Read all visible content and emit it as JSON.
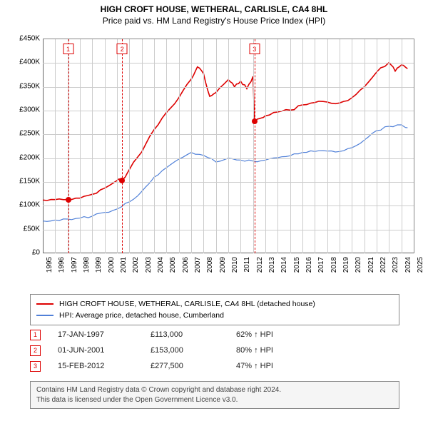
{
  "title": {
    "line1": "HIGH CROFT HOUSE, WETHERAL, CARLISLE, CA4 8HL",
    "line2": "Price paid vs. HM Land Registry's House Price Index (HPI)"
  },
  "chart": {
    "type": "line",
    "background_color": "#ffffff",
    "grid_color": "#cccccc",
    "axis_color": "#666666",
    "x": {
      "min": 1995,
      "max": 2025,
      "tick_step": 1,
      "ticks": [
        1995,
        1996,
        1997,
        1998,
        1999,
        2000,
        2001,
        2002,
        2003,
        2004,
        2005,
        2006,
        2007,
        2008,
        2009,
        2010,
        2011,
        2012,
        2013,
        2014,
        2015,
        2016,
        2017,
        2018,
        2019,
        2020,
        2021,
        2022,
        2023,
        2024,
        2025
      ]
    },
    "y": {
      "min": 0,
      "max": 450000,
      "tick_step": 50000,
      "ticks_labels": [
        "£0",
        "£50K",
        "£100K",
        "£150K",
        "£200K",
        "£250K",
        "£300K",
        "£350K",
        "£400K",
        "£450K"
      ]
    },
    "series": [
      {
        "id": "property",
        "label": "HIGH CROFT HOUSE, WETHERAL, CARLISLE, CA4 8HL (detached house)",
        "color": "#dd0000",
        "width": 1.6,
        "wiggle": 4,
        "points": [
          [
            1995,
            112000
          ],
          [
            1996,
            113000
          ],
          [
            1997,
            113000
          ],
          [
            1998,
            116000
          ],
          [
            1999,
            124000
          ],
          [
            2000,
            137000
          ],
          [
            2001,
            153000
          ],
          [
            2001.5,
            156000
          ],
          [
            2002,
            176000
          ],
          [
            2003,
            213000
          ],
          [
            2004,
            260000
          ],
          [
            2005,
            296000
          ],
          [
            2006,
            327000
          ],
          [
            2007,
            366000
          ],
          [
            2007.5,
            392000
          ],
          [
            2008,
            378000
          ],
          [
            2008.5,
            330000
          ],
          [
            2009,
            338000
          ],
          [
            2010,
            365000
          ],
          [
            2010.5,
            350000
          ],
          [
            2011,
            362000
          ],
          [
            2011.5,
            346000
          ],
          [
            2012,
            372000
          ],
          [
            2012.12,
            277500
          ],
          [
            2012.5,
            283000
          ],
          [
            2013,
            289000
          ],
          [
            2014,
            297000
          ],
          [
            2015,
            301000
          ],
          [
            2016,
            312000
          ],
          [
            2017,
            317000
          ],
          [
            2018,
            318000
          ],
          [
            2019,
            316000
          ],
          [
            2020,
            327000
          ],
          [
            2021,
            350000
          ],
          [
            2022,
            381000
          ],
          [
            2023,
            401000
          ],
          [
            2023.5,
            383000
          ],
          [
            2024,
            396000
          ],
          [
            2024.5,
            388000
          ]
        ]
      },
      {
        "id": "hpi",
        "label": "HPI: Average price, detached house, Cumberland",
        "color": "#5080d8",
        "width": 1.2,
        "wiggle": 3,
        "points": [
          [
            1995,
            68000
          ],
          [
            1996,
            70000
          ],
          [
            1997,
            72000
          ],
          [
            1998,
            74000
          ],
          [
            1999,
            78000
          ],
          [
            2000,
            86000
          ],
          [
            2001,
            93000
          ],
          [
            2002,
            108000
          ],
          [
            2003,
            130000
          ],
          [
            2004,
            160000
          ],
          [
            2005,
            180000
          ],
          [
            2006,
            198000
          ],
          [
            2007,
            212000
          ],
          [
            2008,
            206000
          ],
          [
            2009,
            192000
          ],
          [
            2010,
            200000
          ],
          [
            2011,
            196000
          ],
          [
            2012,
            194000
          ],
          [
            2013,
            196000
          ],
          [
            2014,
            201000
          ],
          [
            2015,
            205000
          ],
          [
            2016,
            212000
          ],
          [
            2017,
            214000
          ],
          [
            2018,
            215000
          ],
          [
            2019,
            214000
          ],
          [
            2020,
            222000
          ],
          [
            2021,
            238000
          ],
          [
            2022,
            258000
          ],
          [
            2023,
            267000
          ],
          [
            2024,
            270000
          ],
          [
            2024.5,
            264000
          ]
        ]
      }
    ],
    "event_lines": [
      {
        "x": 1997.05,
        "label": "1"
      },
      {
        "x": 2001.42,
        "label": "2"
      },
      {
        "x": 2012.12,
        "label": "3"
      }
    ],
    "event_points": [
      {
        "x": 1997.05,
        "y": 113000
      },
      {
        "x": 2001.42,
        "y": 153000
      },
      {
        "x": 2012.12,
        "y": 277500
      }
    ]
  },
  "legend": {
    "items": [
      {
        "color": "#dd0000",
        "label": "HIGH CROFT HOUSE, WETHERAL, CARLISLE, CA4 8HL (detached house)"
      },
      {
        "color": "#5080d8",
        "label": "HPI: Average price, detached house, Cumberland"
      }
    ]
  },
  "transactions": [
    {
      "num": "1",
      "date": "17-JAN-1997",
      "price": "£113,000",
      "delta": "62% ↑ HPI"
    },
    {
      "num": "2",
      "date": "01-JUN-2001",
      "price": "£153,000",
      "delta": "80% ↑ HPI"
    },
    {
      "num": "3",
      "date": "15-FEB-2012",
      "price": "£277,500",
      "delta": "47% ↑ HPI"
    }
  ],
  "attribution": {
    "line1": "Contains HM Land Registry data © Crown copyright and database right 2024.",
    "line2": "This data is licensed under the Open Government Licence v3.0."
  }
}
